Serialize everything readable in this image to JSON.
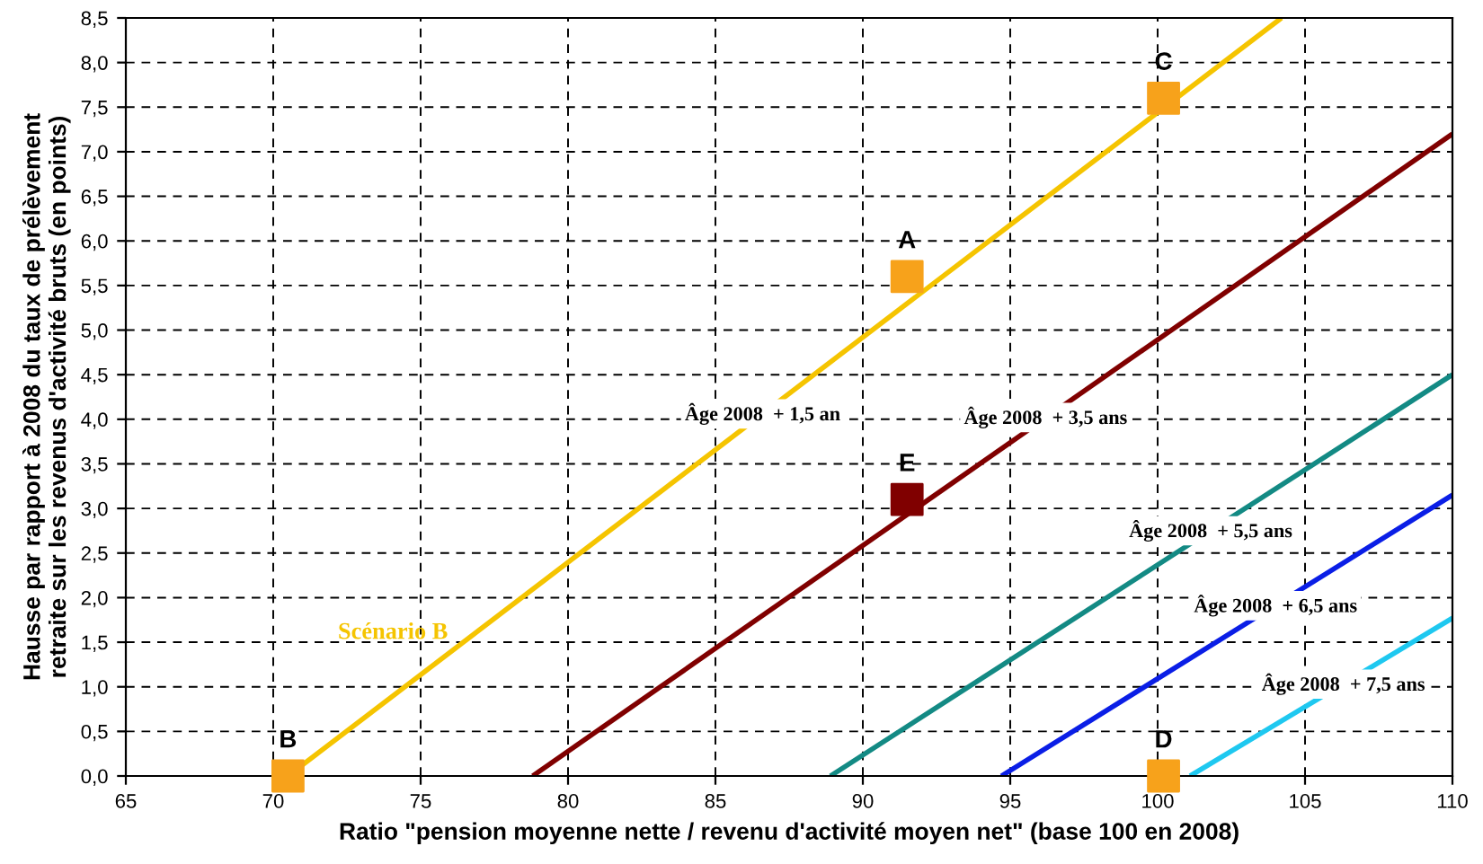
{
  "chart_data": {
    "type": "line",
    "xlabel": "Ratio \"pension moyenne nette / revenu d'activité moyen net\" (base 100 en 2008)",
    "ylabel": "Hausse par rapport à 2008 du taux de prélèvement\nretraite sur les revenus d'activité bruts (en points)",
    "xlim": [
      65,
      110
    ],
    "xticks": [
      65,
      70,
      75,
      80,
      85,
      90,
      95,
      100,
      105,
      110
    ],
    "ylim": [
      0,
      8.5
    ],
    "yticks": [
      {
        "value": 0,
        "label": "0,0"
      },
      {
        "value": 0.5,
        "label": "0,5"
      },
      {
        "value": 1,
        "label": "1,0"
      },
      {
        "value": 1.5,
        "label": "1,5"
      },
      {
        "value": 2,
        "label": "2,0"
      },
      {
        "value": 2.5,
        "label": "2,5"
      },
      {
        "value": 3,
        "label": "3,0"
      },
      {
        "value": 3.5,
        "label": "3,5"
      },
      {
        "value": 4,
        "label": "4,0"
      },
      {
        "value": 4.5,
        "label": "4,5"
      },
      {
        "value": 5,
        "label": "5,0"
      },
      {
        "value": 5.5,
        "label": "5,5"
      },
      {
        "value": 6,
        "label": "6,0"
      },
      {
        "value": 6.5,
        "label": "6,5"
      },
      {
        "value": 7,
        "label": "7,0"
      },
      {
        "value": 7.5,
        "label": "7,5"
      },
      {
        "value": 8,
        "label": "8,0"
      },
      {
        "value": 8.5,
        "label": "8,5"
      }
    ],
    "grid": true,
    "line_style": "solid",
    "series": [
      {
        "name": "Scénario B",
        "color": "#f5c400",
        "x": [
          70.5,
          104.2
        ],
        "values": [
          0,
          8.5
        ]
      },
      {
        "color": "#800000",
        "x": [
          78.8,
          110
        ],
        "values": [
          0,
          7.2
        ]
      },
      {
        "color": "#138a84",
        "x": [
          88.9,
          110
        ],
        "values": [
          0,
          4.5
        ]
      },
      {
        "color": "#0a1ee6",
        "x": [
          94.7,
          110
        ],
        "values": [
          0,
          3.15
        ]
      },
      {
        "color": "#1ec8f0",
        "x": [
          101.1,
          110
        ],
        "values": [
          0,
          1.77
        ]
      },
      {
        "type": "scatter",
        "marker": "square",
        "color": "#f7a21b",
        "x": [
          70.5,
          91.5,
          100.2,
          100.2
        ],
        "values": [
          0,
          5.6,
          7.6,
          0
        ]
      },
      {
        "type": "scatter",
        "marker": "square",
        "color": "#800000",
        "x": [
          91.5
        ],
        "values": [
          3.1
        ]
      }
    ],
    "annotations": [
      {
        "text": "A",
        "x": 91.5,
        "y": 5.6
      },
      {
        "text": "B",
        "x": 70.5,
        "y": 0
      },
      {
        "text": "C",
        "x": 100.2,
        "y": 7.6
      },
      {
        "text": "D",
        "x": 100.2,
        "y": 0
      },
      {
        "text": "E",
        "x": 91.5,
        "y": 3.1
      },
      {
        "text": "Âge 2008  + 1,5 an",
        "x": 86.6,
        "y": 4.06
      },
      {
        "text": "Âge 2008  + 3,5 ans",
        "x": 96.2,
        "y": 4.02
      },
      {
        "text": "Âge 2008  + 5,5 ans",
        "x": 101.8,
        "y": 2.75
      },
      {
        "text": "Âge 2008  + 6,5 ans",
        "x": 104.0,
        "y": 1.91
      },
      {
        "text": "Âge 2008  + 7,5 ans",
        "x": 106.3,
        "y": 1.03
      }
    ]
  }
}
